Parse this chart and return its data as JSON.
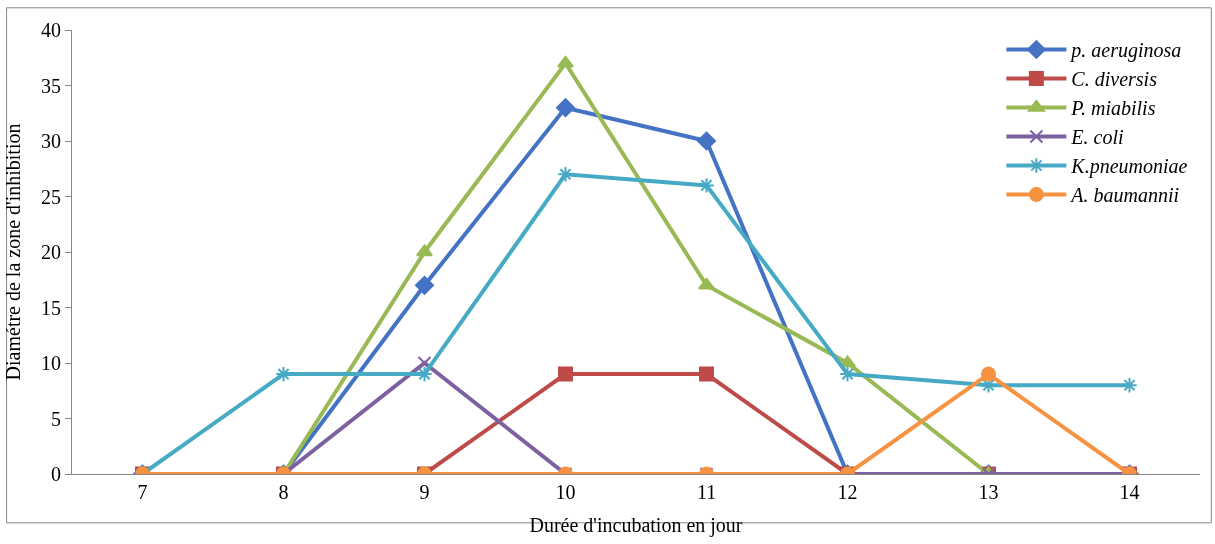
{
  "chart_data": {
    "type": "line",
    "xlabel": "Durée d'incubation en jour",
    "ylabel": "Diamétre de la zone d'inhibition",
    "categories": [
      "7",
      "8",
      "9",
      "10",
      "11",
      "12",
      "13",
      "14"
    ],
    "series": [
      {
        "name": "p. aeruginosa",
        "color": "#4472c4",
        "marker": "diamond",
        "values": [
          0,
          0,
          17,
          33,
          30,
          0,
          0,
          0
        ]
      },
      {
        "name": "C. diversis",
        "color": "#be4b48",
        "marker": "square",
        "values": [
          0,
          0,
          0,
          9,
          9,
          0,
          0,
          0
        ]
      },
      {
        "name": "P. miabilis",
        "color": "#98b954",
        "marker": "triangle",
        "values": [
          0,
          0,
          20,
          37,
          17,
          10,
          0,
          0
        ]
      },
      {
        "name": "E. coli",
        "color": "#7d60a0",
        "marker": "cross",
        "values": [
          0,
          0,
          10,
          0,
          0,
          0,
          0,
          0
        ]
      },
      {
        "name": "K.pneumoniae",
        "color": "#46aac5",
        "marker": "cross",
        "values": [
          0,
          9,
          9,
          27,
          26,
          9,
          8,
          8
        ]
      },
      {
        "name": "A. baumannii",
        "color": "#f69240",
        "marker": "circle",
        "values": [
          0,
          0,
          0,
          0,
          0,
          0,
          9,
          0
        ]
      }
    ],
    "ylim": [
      0,
      40
    ],
    "yticks": [
      0,
      5,
      10,
      15,
      20,
      25,
      30,
      35,
      40
    ],
    "legend": "top right",
    "line_style": "solid"
  }
}
